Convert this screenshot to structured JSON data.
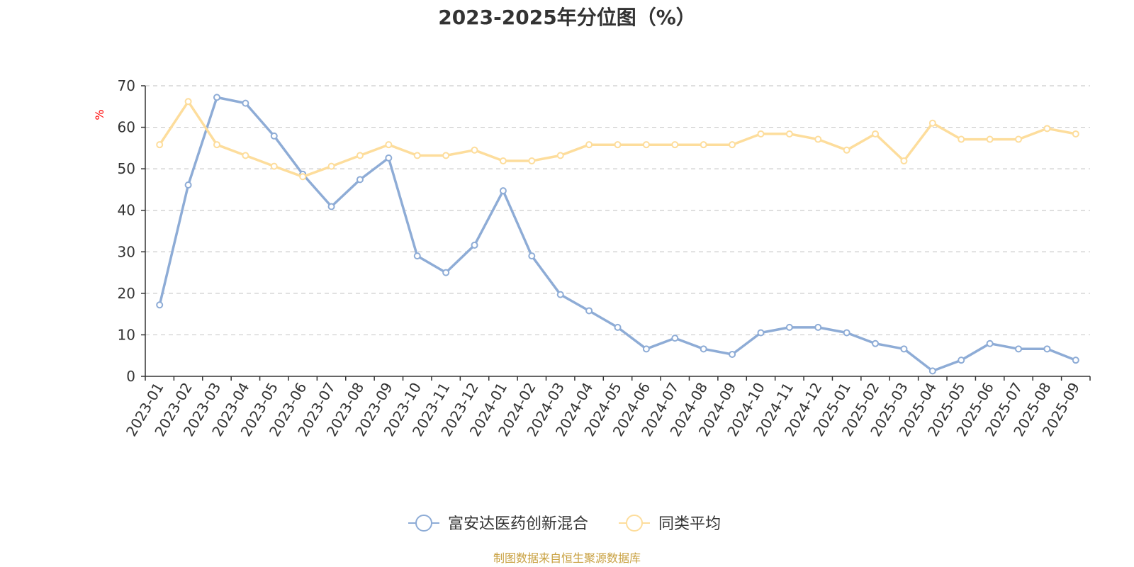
{
  "chart_data": {
    "type": "line",
    "title": "2023-2025年分位图（%）",
    "ylabel": "%",
    "ylim": [
      0,
      70
    ],
    "yticks": [
      0,
      10,
      20,
      30,
      40,
      50,
      60,
      70
    ],
    "grid": true,
    "legend_position": "bottom",
    "categories": [
      "2023-01",
      "2023-02",
      "2023-03",
      "2023-04",
      "2023-05",
      "2023-06",
      "2023-07",
      "2023-08",
      "2023-09",
      "2023-10",
      "2023-11",
      "2023-12",
      "2024-01",
      "2024-02",
      "2024-03",
      "2024-04",
      "2024-05",
      "2024-06",
      "2024-07",
      "2024-08",
      "2024-09",
      "2024-10",
      "2024-11",
      "2024-12",
      "2025-01",
      "2025-02",
      "2025-03",
      "2025-04",
      "2025-05",
      "2025-06",
      "2025-07",
      "2025-08",
      "2025-09"
    ],
    "series": [
      {
        "name": "富安达医药创新混合",
        "color": "#8eacd6",
        "values": [
          17.2,
          46.1,
          67.2,
          65.8,
          57.9,
          48.7,
          40.9,
          47.4,
          52.6,
          29.0,
          25.0,
          31.6,
          44.7,
          29.0,
          19.7,
          15.8,
          11.8,
          6.6,
          9.2,
          6.6,
          5.3,
          10.5,
          11.8,
          11.8,
          10.5,
          7.9,
          6.6,
          1.3,
          3.9,
          7.9,
          6.6,
          6.6,
          3.9
        ]
      },
      {
        "name": "同类平均",
        "color": "#fddd9c",
        "values": [
          55.8,
          66.2,
          55.8,
          53.2,
          50.6,
          48.1,
          50.6,
          53.2,
          55.8,
          53.2,
          53.2,
          54.5,
          51.9,
          51.9,
          53.2,
          55.8,
          55.8,
          55.8,
          55.8,
          55.8,
          55.8,
          58.4,
          58.4,
          57.1,
          54.5,
          58.4,
          51.9,
          61.0,
          57.1,
          57.1,
          57.1,
          59.7,
          58.4
        ]
      }
    ]
  },
  "source": "制图数据来自恒生聚源数据库"
}
